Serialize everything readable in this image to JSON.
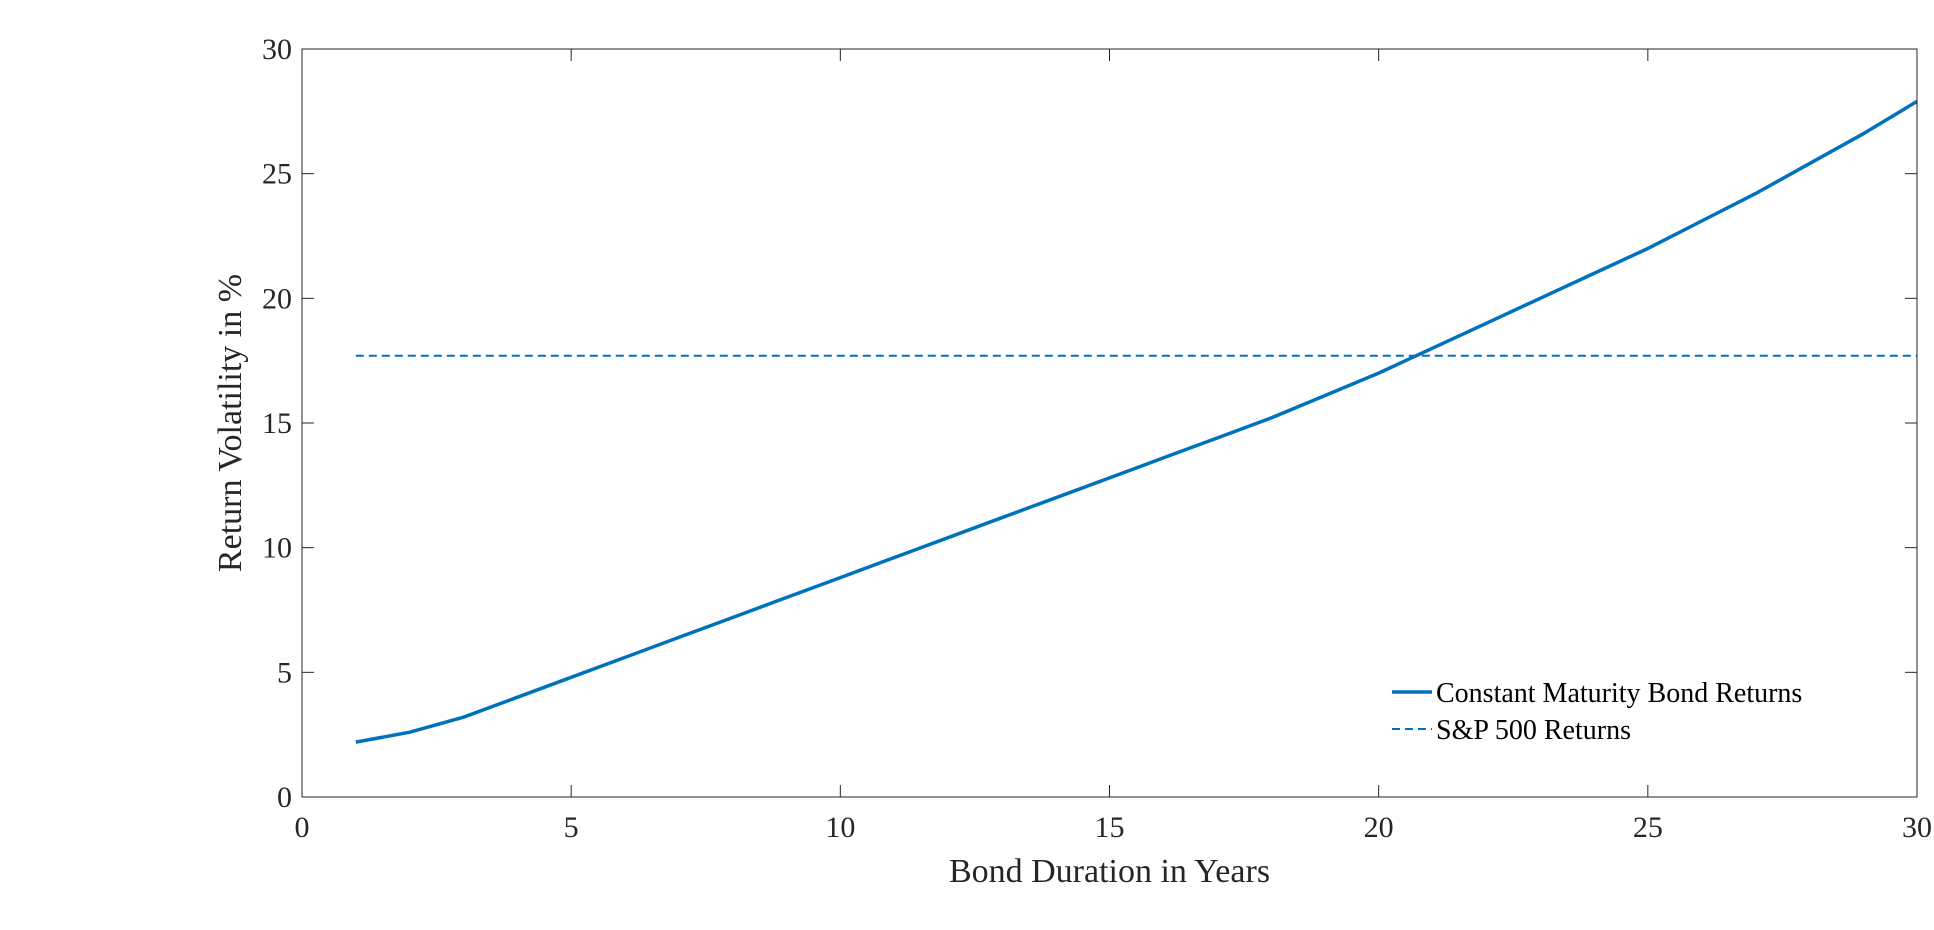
{
  "chart_data": {
    "type": "line",
    "title": "",
    "xlabel": "Bond Duration in Years",
    "ylabel": "Return Volatility in %",
    "xlim": [
      0,
      30
    ],
    "ylim": [
      0,
      30
    ],
    "xticks": [
      "0",
      "5",
      "10",
      "15",
      "20",
      "25",
      "30"
    ],
    "yticks": [
      "0",
      "5",
      "10",
      "15",
      "20",
      "25",
      "30"
    ],
    "grid": false,
    "legend_position": "bottom-right",
    "series": [
      {
        "name": "Constant Maturity Bond Returns",
        "style": "solid",
        "color": "#0072BD",
        "x": [
          1,
          2,
          3,
          4,
          5,
          6,
          7,
          8,
          9,
          10,
          11,
          12,
          13,
          14,
          15,
          16,
          17,
          18,
          19,
          20,
          21,
          22,
          23,
          24,
          25,
          26,
          27,
          28,
          29,
          30
        ],
        "y": [
          2.2,
          2.6,
          3.2,
          4.0,
          4.8,
          5.6,
          6.4,
          7.2,
          8.0,
          8.8,
          9.6,
          10.4,
          11.2,
          12.0,
          12.8,
          13.6,
          14.4,
          15.2,
          16.1,
          17.0,
          18.0,
          19.0,
          20.0,
          21.0,
          22.0,
          23.1,
          24.2,
          25.4,
          26.6,
          27.9
        ]
      },
      {
        "name": "S&P 500 Returns",
        "style": "dashed",
        "color": "#0072BD",
        "x": [
          1,
          30
        ],
        "y": [
          17.7,
          17.7
        ]
      }
    ]
  }
}
